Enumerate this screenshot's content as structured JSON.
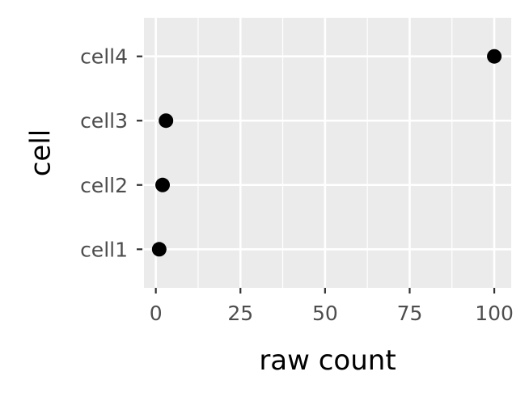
{
  "chart_data": {
    "type": "scatter",
    "title": "",
    "xlabel": "raw count",
    "ylabel": "cell",
    "xlim": [
      -3.5,
      105
    ],
    "x_ticks": [
      0,
      25,
      50,
      75,
      100
    ],
    "x_tick_labels": [
      "0",
      "25",
      "50",
      "75",
      "100"
    ],
    "categories": [
      "cell1",
      "cell2",
      "cell3",
      "cell4"
    ],
    "points": [
      {
        "category": "cell1",
        "x": 1
      },
      {
        "category": "cell2",
        "x": 2
      },
      {
        "category": "cell3",
        "x": 3
      },
      {
        "category": "cell4",
        "x": 100
      }
    ],
    "grid": true,
    "legend": "none",
    "colors": {
      "panel": "#ebebeb",
      "gridline": "#ffffff",
      "point": "#000000",
      "tick": "#333333"
    }
  }
}
